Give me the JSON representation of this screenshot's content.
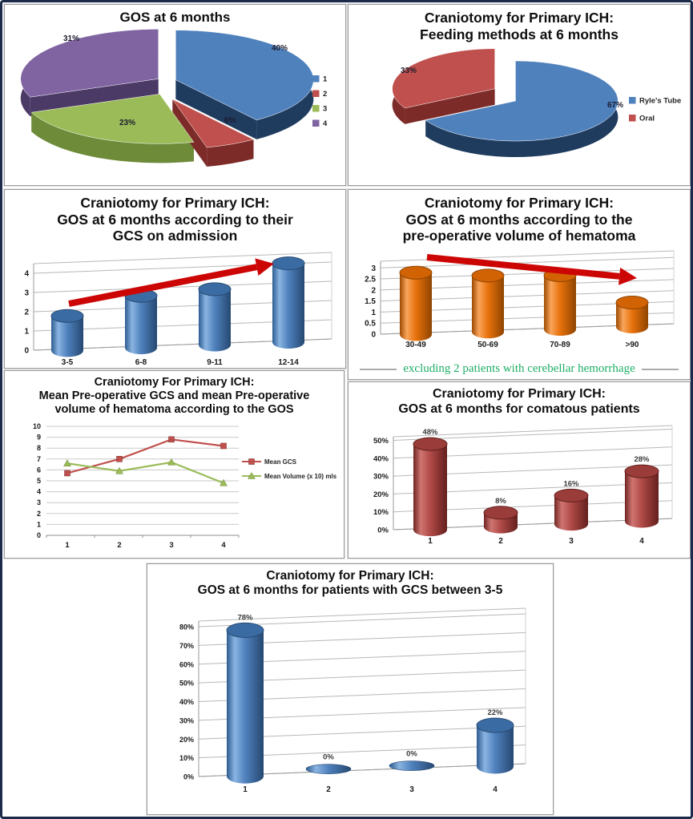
{
  "page": {
    "background": "#ffffff",
    "outer_border_color": "#1c2b4a",
    "panel_border_color": "#9c9c9c"
  },
  "chart_data": [
    {
      "id": "gos-pie",
      "type": "pie",
      "title": "GOS at 6 months",
      "labels": [
        "1",
        "2",
        "3",
        "4"
      ],
      "values": [
        40,
        6,
        23,
        31
      ],
      "value_labels": [
        "40%",
        "6%",
        "23%",
        "31%"
      ],
      "colors": [
        "#4f81bd",
        "#c0504d",
        "#9bbb59",
        "#8064a2"
      ],
      "side_colors": [
        "#1f3c5f",
        "#7d2b29",
        "#6e8b39",
        "#4c3a66"
      ],
      "legend": [
        "1",
        "2",
        "3",
        "4"
      ],
      "legend_position": "right"
    },
    {
      "id": "feeding-pie",
      "type": "pie",
      "title": "Craniotomy for Primary ICH:\nFeeding methods at 6 months",
      "labels": [
        "Ryle's Tube",
        "Oral"
      ],
      "values": [
        67,
        33
      ],
      "value_labels": [
        "67%",
        "33%"
      ],
      "colors": [
        "#4f81bd",
        "#c0504d"
      ],
      "side_colors": [
        "#1f3c5f",
        "#7d2b29"
      ],
      "legend": [
        "Ryle's Tube",
        "Oral"
      ],
      "legend_position": "right"
    },
    {
      "id": "gos-by-gcs",
      "type": "bar",
      "title": "Craniotomy for Primary ICH:\nGOS at 6 months according to their\nGCS on admission",
      "categories": [
        "3-5",
        "6-8",
        "9-11",
        "12-14"
      ],
      "values": [
        1.8,
        2.7,
        2.9,
        4.1
      ],
      "ylim": [
        0,
        4
      ],
      "ytick_labels": [
        "0",
        "1",
        "2",
        "3",
        "4"
      ],
      "ytick_values": [
        0,
        1,
        2,
        3,
        4
      ],
      "bar_color": "#4f81bd",
      "trend_arrow": "up",
      "arrow_color": "#cc0505"
    },
    {
      "id": "gos-by-volume",
      "type": "bar",
      "title": "Craniotomy for Primary ICH:\nGOS at 6 months according to the\npre-operative volume of hematoma",
      "categories": [
        "30-49",
        "50-69",
        "70-89",
        ">90"
      ],
      "values": [
        2.8,
        2.55,
        2.45,
        1.1
      ],
      "ylim": [
        0,
        3
      ],
      "ytick_labels": [
        "0",
        "0.5",
        "1",
        "1.5",
        "2",
        "2.5",
        "3"
      ],
      "ytick_values": [
        0,
        0.5,
        1,
        1.5,
        2,
        2.5,
        3
      ],
      "bar_color": "#e8720c",
      "trend_arrow": "down",
      "arrow_color": "#cc0505",
      "footnote": "excluding 2 patients with cerebellar hemorrhage",
      "footnote_color": "#1fae66"
    },
    {
      "id": "mean-gcs-volume",
      "type": "line",
      "title": "Craniotomy For Primary ICH:\nMean Pre-operative GCS and mean Pre-operative\nvolume of hematoma according to the GOS",
      "x_labels": [
        "1",
        "2",
        "3",
        "4"
      ],
      "series": [
        {
          "name": "Mean GCS",
          "values": [
            5.7,
            7,
            8.8,
            8.2
          ],
          "color": "#c0504d",
          "marker": "square"
        },
        {
          "name": "Mean Volume (x 10) mls",
          "values": [
            6.6,
            5.9,
            6.7,
            4.8
          ],
          "color": "#9bbb59",
          "marker": "triangle"
        }
      ],
      "ylim": [
        0,
        10
      ],
      "ytick_labels": [
        "0",
        "1",
        "2",
        "3",
        "4",
        "5",
        "6",
        "7",
        "8",
        "9",
        "10"
      ],
      "ytick_values": [
        0,
        1,
        2,
        3,
        4,
        5,
        6,
        7,
        8,
        9,
        10
      ],
      "legend_position": "right"
    },
    {
      "id": "gos-comatous",
      "type": "bar",
      "title": "Craniotomy for Primary ICH:\nGOS at 6 months for comatous patients",
      "categories": [
        "1",
        "2",
        "3",
        "4"
      ],
      "values": [
        48,
        8,
        16,
        28
      ],
      "data_labels": [
        "48%",
        "8%",
        "16%",
        "28%"
      ],
      "ylim": [
        0,
        50
      ],
      "ytick_labels": [
        "0%",
        "10%",
        "20%",
        "30%",
        "40%",
        "50%"
      ],
      "ytick_values": [
        0,
        10,
        20,
        30,
        40,
        50
      ],
      "bar_color": "#b04a47"
    },
    {
      "id": "gos-gcs-3-5",
      "type": "bar",
      "title": "Craniotomy for Primary ICH:\nGOS at 6 months for patients with GCS between 3-5",
      "categories": [
        "1",
        "2",
        "3",
        "4"
      ],
      "values": [
        78,
        0,
        0,
        22
      ],
      "data_labels": [
        "78%",
        "0%",
        "0%",
        "22%"
      ],
      "ylim": [
        0,
        80
      ],
      "ytick_labels": [
        "0%",
        "10%",
        "20%",
        "30%",
        "40%",
        "50%",
        "60%",
        "70%",
        "80%"
      ],
      "ytick_values": [
        0,
        10,
        20,
        30,
        40,
        50,
        60,
        70,
        80
      ],
      "bar_color": "#4f81bd"
    }
  ]
}
